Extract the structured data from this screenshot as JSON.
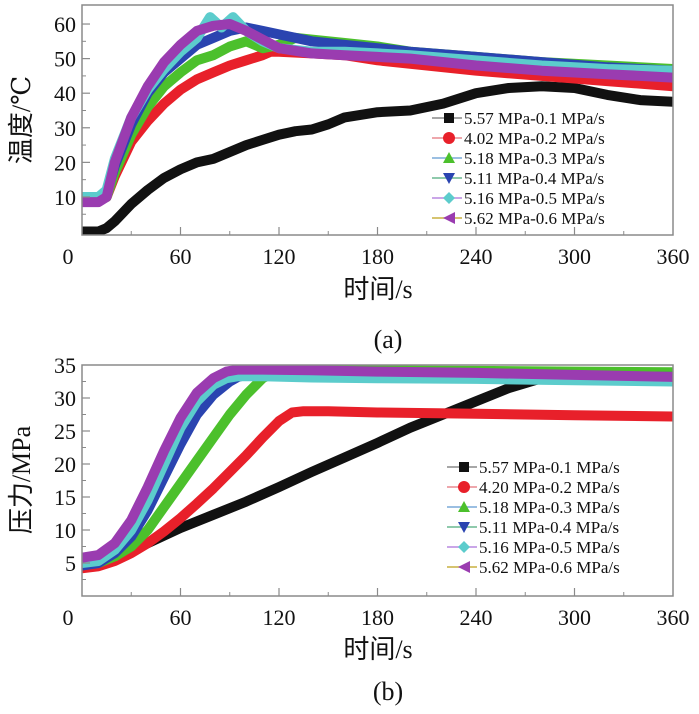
{
  "chart_data": [
    {
      "id": "a",
      "type": "line",
      "panel_label": "(a)",
      "title": "",
      "xlabel": "时间/s",
      "ylabel": "温度/℃",
      "xlim": [
        0,
        360
      ],
      "ylim": [
        -1,
        65.5
      ],
      "xticks": [
        0,
        60,
        120,
        180,
        240,
        300,
        360
      ],
      "xtick_labels": [
        "0",
        "60",
        "120",
        "180",
        "240",
        "300",
        "360"
      ],
      "yticks": [
        10,
        20,
        30,
        40,
        50,
        60
      ],
      "ytick_labels": [
        "10",
        "20",
        "30",
        "40",
        "50",
        "60"
      ],
      "grid": false,
      "legend_position": "bottom-right",
      "series": [
        {
          "name": "5.57 MPa-0.1 MPa/s",
          "color": "#111111",
          "marker": "square",
          "legend_line": "#8a8a8a",
          "x": [
            0,
            10,
            15,
            20,
            30,
            40,
            50,
            60,
            70,
            80,
            90,
            100,
            110,
            120,
            130,
            140,
            150,
            160,
            180,
            200,
            220,
            240,
            260,
            280,
            300,
            320,
            340,
            360
          ],
          "y": [
            0,
            0,
            1,
            3,
            8,
            12,
            15.5,
            18,
            20,
            21,
            23,
            25,
            26.5,
            28,
            29,
            29.5,
            31,
            33,
            34.5,
            35,
            37,
            40,
            41.5,
            42,
            41.5,
            39.5,
            38,
            37.5
          ]
        },
        {
          "name": "4.02 MPa-0.2 MPa/s",
          "color": "#e8202a",
          "marker": "circle",
          "legend_line": "#e88a90",
          "x": [
            0,
            10,
            15,
            20,
            30,
            40,
            50,
            60,
            70,
            80,
            90,
            100,
            110,
            115,
            120,
            140,
            160,
            180,
            200,
            240,
            280,
            320,
            360
          ],
          "y": [
            9,
            9,
            10,
            16,
            26,
            32,
            37,
            41,
            44,
            46,
            48,
            49.5,
            51,
            52,
            52,
            51.5,
            51,
            49.5,
            48.5,
            46.5,
            45,
            43.5,
            42
          ]
        },
        {
          "name": "5.18 MPa-0.3 MPa/s",
          "color": "#4cc02c",
          "marker": "triangle-up",
          "legend_line": "#7aaad8",
          "x": [
            0,
            10,
            15,
            20,
            30,
            40,
            50,
            60,
            70,
            80,
            90,
            100,
            110,
            120,
            130,
            140,
            160,
            180,
            200,
            240,
            280,
            320,
            360
          ],
          "y": [
            9,
            9,
            10,
            17,
            28,
            36,
            42,
            46,
            49.5,
            51,
            53.5,
            55,
            53,
            54,
            56,
            55.5,
            54.5,
            53.5,
            52,
            50.5,
            49,
            48,
            47
          ]
        },
        {
          "name": "5.11 MPa-0.4 MPa/s",
          "color": "#2a44b0",
          "marker": "triangle-down",
          "legend_line": "#6ab890",
          "x": [
            0,
            10,
            15,
            20,
            30,
            40,
            50,
            60,
            70,
            80,
            90,
            100,
            110,
            120,
            140,
            160,
            180,
            200,
            240,
            280,
            320,
            360
          ],
          "y": [
            9.5,
            9.5,
            11,
            19,
            31,
            40,
            46,
            50,
            54,
            56,
            58,
            59,
            58,
            57,
            55,
            54,
            53,
            52,
            50.5,
            49,
            47.5,
            46.5
          ]
        },
        {
          "name": "5.16 MPa-0.5 MPa/s",
          "color": "#5ccccc",
          "marker": "diamond",
          "legend_line": "#b888e0",
          "x": [
            0,
            10,
            15,
            20,
            30,
            40,
            50,
            60,
            70,
            78,
            85,
            92,
            100,
            110,
            120,
            140,
            160,
            180,
            200,
            240,
            280,
            320,
            360
          ],
          "y": [
            10,
            10,
            12,
            21,
            33,
            41,
            47,
            52,
            56,
            62,
            59,
            62,
            58,
            55,
            53,
            52,
            52,
            51.5,
            51,
            49.5,
            48,
            47,
            46.5
          ]
        },
        {
          "name": "5.62 MPa-0.6 MPa/s",
          "color": "#9a3cb0",
          "marker": "triangle-left",
          "legend_line": "#c8b040",
          "x": [
            0,
            10,
            15,
            20,
            30,
            40,
            50,
            60,
            70,
            80,
            90,
            100,
            110,
            120,
            140,
            160,
            180,
            200,
            240,
            280,
            320,
            360
          ],
          "y": [
            8.5,
            8.5,
            10,
            20,
            33,
            42,
            49,
            54,
            58,
            59.5,
            60,
            58,
            55.5,
            53,
            51.5,
            51,
            50.5,
            50,
            48,
            46.5,
            45.5,
            44.5
          ]
        }
      ]
    },
    {
      "id": "b",
      "type": "line",
      "panel_label": "(b)",
      "title": "",
      "xlabel": "时间/s",
      "ylabel": "压力/MPa",
      "xlim": [
        0,
        360
      ],
      "ylim": [
        0,
        35
      ],
      "xticks": [
        0,
        60,
        120,
        180,
        240,
        300,
        360
      ],
      "xtick_labels": [
        "0",
        "60",
        "120",
        "180",
        "240",
        "300",
        "360"
      ],
      "yticks": [
        5,
        10,
        15,
        20,
        25,
        30,
        35
      ],
      "ytick_labels": [
        "5",
        "10",
        "15",
        "20",
        "25",
        "30",
        "35"
      ],
      "grid": false,
      "legend_position": "bottom-right",
      "series": [
        {
          "name": "5.57 MPa-0.1 MPa/s",
          "color": "#111111",
          "marker": "square",
          "legend_line": "#8a8a8a",
          "x": [
            0,
            10,
            20,
            30,
            40,
            60,
            80,
            100,
            120,
            140,
            160,
            180,
            200,
            220,
            240,
            260,
            280,
            290,
            300,
            320,
            340,
            360
          ],
          "y": [
            4.5,
            4.8,
            5.8,
            7,
            8,
            10.3,
            12.3,
            14.3,
            16.5,
            18.8,
            21,
            23.2,
            25.5,
            27.5,
            29.5,
            31.5,
            33,
            33.2,
            33.2,
            33.2,
            33.1,
            33
          ]
        },
        {
          "name": "4.20 MPa-0.2 MPa/s",
          "color": "#e8202a",
          "marker": "circle",
          "legend_line": "#e88a90",
          "x": [
            0,
            10,
            20,
            30,
            40,
            50,
            60,
            70,
            80,
            90,
            100,
            110,
            120,
            128,
            135,
            150,
            180,
            240,
            300,
            360
          ],
          "y": [
            4.2,
            4.5,
            5.3,
            6.5,
            8,
            9.8,
            11.8,
            14,
            16.3,
            18.8,
            21.3,
            24,
            26.5,
            27.8,
            28,
            28,
            27.8,
            27.6,
            27.4,
            27.2
          ]
        },
        {
          "name": "5.18 MPa-0.3 MPa/s",
          "color": "#4cc02c",
          "marker": "triangle-up",
          "legend_line": "#7aaad8",
          "x": [
            0,
            10,
            20,
            30,
            40,
            50,
            60,
            70,
            80,
            90,
            100,
            110,
            118,
            125,
            140,
            180,
            240,
            300,
            360
          ],
          "y": [
            4.7,
            5,
            6,
            7.5,
            10,
            13.5,
            17,
            20.5,
            24,
            27.5,
            30.5,
            33,
            34,
            34.2,
            34.2,
            34.2,
            34.1,
            34,
            33.9
          ]
        },
        {
          "name": "5.11 MPa-0.4 MPa/s",
          "color": "#2a44b0",
          "marker": "triangle-down",
          "legend_line": "#6ab890",
          "x": [
            0,
            10,
            20,
            30,
            40,
            50,
            60,
            70,
            80,
            90,
            95,
            100,
            110,
            140,
            180,
            240,
            300,
            360
          ],
          "y": [
            4.6,
            5,
            6.5,
            9,
            13,
            18,
            23,
            27.5,
            30.5,
            32.5,
            33.2,
            33.5,
            33.6,
            33.6,
            33.5,
            33.4,
            33.3,
            33.2
          ]
        },
        {
          "name": "5.16 MPa-0.5 MPa/s",
          "color": "#5ccccc",
          "marker": "diamond",
          "legend_line": "#b888e0",
          "x": [
            0,
            10,
            20,
            30,
            40,
            50,
            60,
            70,
            80,
            88,
            95,
            110,
            140,
            180,
            240,
            300,
            360
          ],
          "y": [
            5,
            5.3,
            7,
            10,
            14.5,
            20,
            25.5,
            29.5,
            32,
            33,
            33.3,
            33.3,
            33.1,
            33,
            32.9,
            32.7,
            32.5
          ]
        },
        {
          "name": "5.62 MPa-0.6 MPa/s",
          "color": "#9a3cb0",
          "marker": "triangle-left",
          "legend_line": "#c8b040",
          "x": [
            0,
            10,
            20,
            30,
            40,
            50,
            60,
            70,
            80,
            88,
            95,
            110,
            140,
            180,
            240,
            300,
            360
          ],
          "y": [
            5.8,
            6.2,
            8,
            11.5,
            16.5,
            22,
            27,
            30.8,
            33,
            34,
            34.3,
            34.3,
            34.2,
            34,
            33.8,
            33.5,
            33.2
          ]
        }
      ]
    }
  ]
}
